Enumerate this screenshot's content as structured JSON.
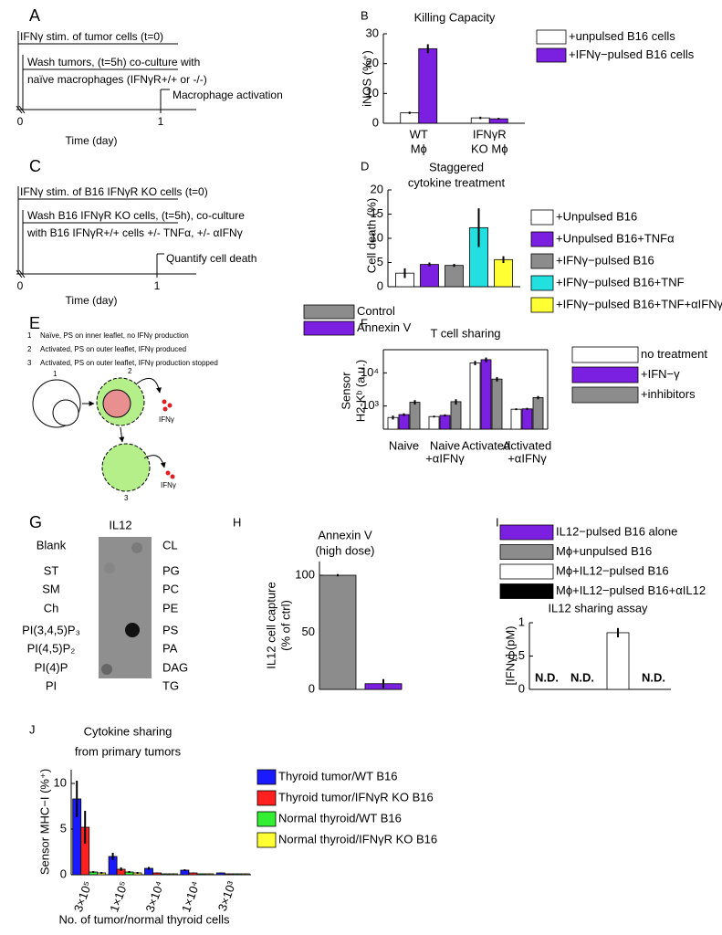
{
  "diagrams": {
    "A": {
      "panel": "A",
      "steps": [
        "IFNγ stim. of tumor cells (t=0)",
        "Wash tumors, (t=5h) co-culture with",
        "naïve macrophages (IFNγR+/+ or -/-)",
        "Macrophage activation"
      ],
      "axis": [
        "0",
        "1"
      ],
      "xlabel": "Time (day)"
    },
    "C": {
      "panel": "C",
      "steps": [
        "IFNγ stim. of B16 IFNγR KO cells (t=0)",
        "Wash B16 IFNγR KO cells, (t=5h), co-culture",
        "with B16 IFNγR+/+ cells +/- TNFα, +/- αIFNγ",
        "Quantify cell death"
      ],
      "axis": [
        "0",
        "1"
      ],
      "xlabel": "Time (day)"
    },
    "E": {
      "panel": "E",
      "key": [
        [
          "1",
          "Naïve, PS on inner leaflet, no IFNγ production"
        ],
        [
          "2",
          "Activated, PS on outer leaflet, IFNγ produced"
        ],
        [
          "3",
          "Activated, PS on outer leaflet, IFNγ production stopped"
        ]
      ],
      "cells": [
        "1",
        "2",
        "3"
      ],
      "product": [
        "IFNγ",
        "IFNγ"
      ]
    },
    "G": {
      "panel": "G",
      "title": "IL12",
      "left": [
        {
          "label": "Blank",
          "color": "#000000"
        },
        {
          "label": "ST",
          "color": "#e00000"
        },
        {
          "label": "SM",
          "color": "#000000"
        },
        {
          "label": "Ch",
          "color": "#000000"
        },
        {
          "label": "PI(3,4,5)P₃",
          "color": "#000000"
        },
        {
          "label": "PI(4,5)P₂",
          "color": "#000000"
        },
        {
          "label": "PI(4)P",
          "color": "#e00000"
        },
        {
          "label": "PI",
          "color": "#000000"
        }
      ],
      "right": [
        {
          "label": "CL",
          "color": "#e00000"
        },
        {
          "label": "PG",
          "color": "#000000"
        },
        {
          "label": "PC",
          "color": "#000000"
        },
        {
          "label": "PE",
          "color": "#000000"
        },
        {
          "label": "PS",
          "color": "#e00000"
        },
        {
          "label": "PA",
          "color": "#000000"
        },
        {
          "label": "DAG",
          "color": "#000000"
        },
        {
          "label": "TG",
          "color": "#000000"
        }
      ]
    }
  },
  "chart_data": [
    {
      "panel": "B",
      "type": "bar",
      "title": "Killing Capacity",
      "ylabel": "iNOS (%⁺)",
      "categories": [
        [
          "WT",
          "Mϕ"
        ],
        [
          "IFNγR",
          "KO Mϕ"
        ]
      ],
      "series": [
        {
          "name": "+unpulsed B16 cells",
          "color": "#ffffff",
          "values": [
            3.5,
            1.8
          ],
          "errors": [
            0.4,
            0.4
          ]
        },
        {
          "name": "+IFNγ−pulsed B16 cells",
          "color": "#7b1fe0",
          "values": [
            25,
            1.5
          ],
          "errors": [
            1.5,
            0.3
          ]
        }
      ],
      "ylim": [
        0,
        30
      ],
      "yticks": [
        0,
        10,
        20,
        30
      ]
    },
    {
      "panel": "D",
      "type": "bar",
      "title": [
        "Staggered",
        "cytokine treatment"
      ],
      "ylabel": "Cell death (%)",
      "categories": [
        null
      ],
      "series": [
        {
          "name": "+Unpulsed B16",
          "color": "#ffffff",
          "values": [
            2.8
          ],
          "errors": [
            1
          ]
        },
        {
          "name": "+Unpulsed B16+TNFα",
          "color": "#7b1fe0",
          "values": [
            4.6
          ],
          "errors": [
            0.4
          ]
        },
        {
          "name": "+IFNγ−pulsed B16",
          "color": "#8c8c8c",
          "values": [
            4.4
          ],
          "errors": [
            0.3
          ]
        },
        {
          "name": "+IFNγ−pulsed B16+TNF",
          "color": "#22e0e0",
          "values": [
            12.2
          ],
          "errors": [
            4
          ]
        },
        {
          "name": "+IFNγ−pulsed B16+TNF+αIFNγ",
          "color": "#ffff33",
          "values": [
            5.6
          ],
          "errors": [
            0.7
          ]
        }
      ],
      "ylim": [
        0,
        20
      ],
      "yticks": [
        0,
        5,
        10,
        15,
        20
      ]
    },
    {
      "panel": "F",
      "type": "bar",
      "title": "T cell sharing",
      "ylabel": [
        "Sensor",
        "H2-Kᵇ (a.u.)"
      ],
      "categories": [
        [
          "Naive"
        ],
        [
          "Naive",
          "+αIFNγ"
        ],
        [
          "Activated"
        ],
        [
          "Activated",
          "+αIFNγ"
        ]
      ],
      "yscale": "log",
      "series": [
        {
          "name": "no treatment",
          "color": "#ffffff",
          "values": [
            450,
            480,
            20000,
            800
          ],
          "errors": [
            60,
            30,
            3000,
            50
          ]
        },
        {
          "name": "+IFN−γ",
          "color": "#7b1fe0",
          "values": [
            550,
            520,
            25000,
            820
          ],
          "errors": [
            50,
            40,
            4000,
            60
          ]
        },
        {
          "name": "+inhibitors",
          "color": "#8c8c8c",
          "values": [
            1300,
            1350,
            6500,
            1800
          ],
          "errors": [
            200,
            250,
            1000,
            200
          ]
        }
      ],
      "ylim": [
        200,
        50000
      ],
      "yticks": [
        {
          "value": 1000,
          "label": "10³"
        },
        {
          "value": 10000,
          "label": "10⁴"
        }
      ]
    },
    {
      "panel": "H",
      "type": "bar",
      "title": [
        "Annexin V",
        "(high dose)"
      ],
      "ylabel": [
        "IL12 cell capture",
        "(% of ctrl)"
      ],
      "categories": [
        null
      ],
      "series": [
        {
          "name": "Control",
          "color": "#8c8c8c",
          "values": [
            100
          ],
          "errors": [
            1
          ]
        },
        {
          "name": "Annexin V",
          "color": "#7b1fe0",
          "values": [
            5
          ],
          "errors": [
            4
          ]
        }
      ],
      "ylim": [
        0,
        112
      ],
      "yticks": [
        0,
        50,
        100
      ]
    },
    {
      "panel": "I",
      "type": "bar",
      "title": "IL12 sharing assay",
      "ylabel": "[IFNγ] (pM)",
      "categories": [
        null
      ],
      "series": [
        {
          "name": "IL12−pulsed B16 alone",
          "color": "#7b1fe0",
          "values": [
            null
          ],
          "value_labels": [
            "N.D."
          ]
        },
        {
          "name": "Mϕ+unpulsed B16",
          "color": "#8c8c8c",
          "values": [
            null
          ],
          "value_labels": [
            "N.D."
          ]
        },
        {
          "name": "Mϕ+IL12−pulsed B16",
          "color": "#ffffff",
          "values": [
            0.85
          ],
          "errors": [
            0.07
          ]
        },
        {
          "name": "Mϕ+IL12−pulsed B16+αIL12",
          "color": "#000000",
          "values": [
            null
          ],
          "value_labels": [
            "N.D."
          ]
        }
      ],
      "ylim": [
        0,
        1
      ],
      "yticks": [
        0,
        0.5,
        1
      ]
    },
    {
      "panel": "J",
      "type": "bar",
      "title": [
        "Cytokine sharing",
        "from primary tumors"
      ],
      "ylabel": "Sensor MHC−I (%⁺)",
      "xlabel": "No. of tumor/normal thyroid cells",
      "categories": [
        "3×10⁵",
        "1×10⁵",
        "3×10⁴",
        "1×10⁴",
        "3×10³"
      ],
      "series": [
        {
          "name": "Thyroid tumor/WT B16",
          "color": "#1a1aff",
          "values": [
            8.3,
            2,
            0.7,
            0.5,
            0.2
          ],
          "errors": [
            2,
            0.4,
            0.15,
            0.1,
            0.05
          ]
        },
        {
          "name": "Thyroid tumor/IFNγR KO B16",
          "color": "#ff2020",
          "values": [
            5.2,
            0.6,
            0.2,
            0.2,
            0.1
          ],
          "errors": [
            1.8,
            0.2,
            0.05,
            0.05,
            0.03
          ]
        },
        {
          "name": "Normal thyroid/WT B16",
          "color": "#33ee33",
          "values": [
            0.3,
            0.3,
            0.1,
            0.1,
            0.1
          ],
          "errors": [
            0.1,
            0.1,
            0.03,
            0.03,
            0.03
          ]
        },
        {
          "name": "Normal thyroid/IFNγR KO B16",
          "color": "#ffff33",
          "values": [
            0.2,
            0.2,
            0.1,
            0.1,
            0.1
          ],
          "errors": [
            0.1,
            0.1,
            0.03,
            0.03,
            0.03
          ]
        }
      ],
      "ylim": [
        0,
        11.5
      ],
      "yticks": [
        0,
        5,
        10
      ]
    }
  ]
}
